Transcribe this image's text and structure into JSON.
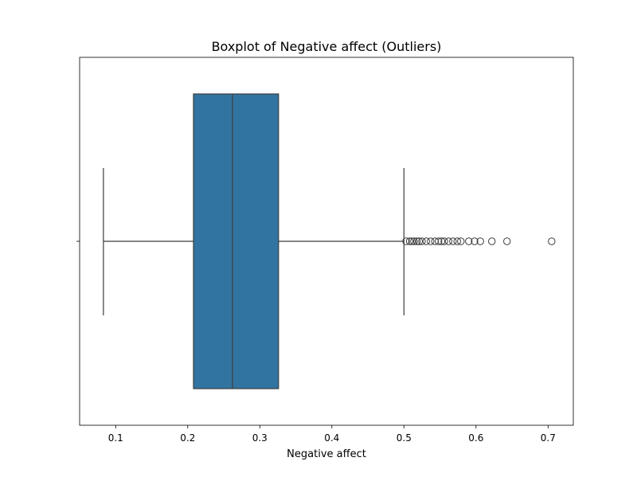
{
  "chart_data": {
    "type": "boxplot",
    "title": "Boxplot of Negative affect (Outliers)",
    "xlabel": "Negative affect",
    "ylabel": "",
    "xlim": [
      0.05,
      0.735
    ],
    "xticks": [
      0.1,
      0.2,
      0.3,
      0.4,
      0.5,
      0.6,
      0.7
    ],
    "xtick_labels": [
      "0.1",
      "0.2",
      "0.3",
      "0.4",
      "0.5",
      "0.6",
      "0.7"
    ],
    "grid": false,
    "box": {
      "whisker_low": 0.083,
      "q1": 0.208,
      "median": 0.262,
      "q3": 0.326,
      "whisker_high": 0.5,
      "color": "#3274a1"
    },
    "outliers": [
      0.503,
      0.508,
      0.511,
      0.514,
      0.518,
      0.521,
      0.525,
      0.531,
      0.537,
      0.543,
      0.548,
      0.552,
      0.556,
      0.562,
      0.568,
      0.574,
      0.579,
      0.59,
      0.598,
      0.606,
      0.622,
      0.643,
      0.705
    ]
  }
}
